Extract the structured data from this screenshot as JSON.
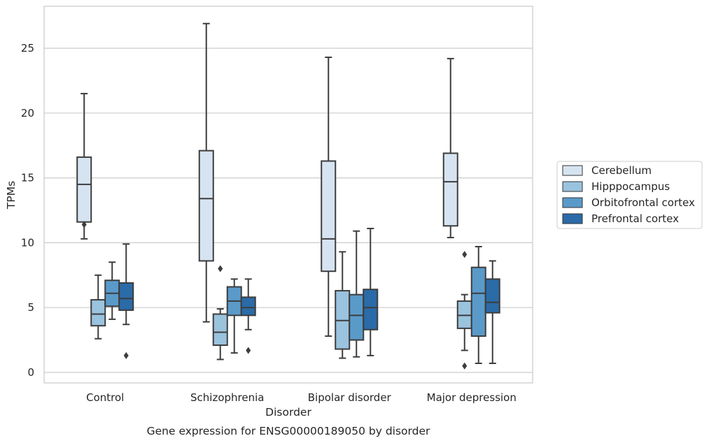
{
  "chart_data": {
    "type": "box",
    "title": "Gene expression for ENSG00000189050 by disorder",
    "xlabel": "Disorder",
    "ylabel": "TPMs",
    "ylim": [
      -0.8,
      28
    ],
    "yticks": [
      0,
      5,
      10,
      15,
      20,
      25
    ],
    "grid": "horizontal",
    "legend_position": "right",
    "categories": [
      "Control",
      "Schizophrenia",
      "Bipolar disorder",
      "Major depression"
    ],
    "series": [
      {
        "name": "Cerebellum",
        "color": "#d6e4f2",
        "boxes": [
          {
            "whisker_low": 10.3,
            "q1": 11.6,
            "median": 14.5,
            "q3": 16.6,
            "whisker_high": 21.5,
            "outliers": [
              11.4
            ]
          },
          {
            "whisker_low": 3.9,
            "q1": 8.6,
            "median": 13.4,
            "q3": 17.1,
            "whisker_high": 26.9,
            "outliers": []
          },
          {
            "whisker_low": 2.8,
            "q1": 7.8,
            "median": 10.3,
            "q3": 16.3,
            "whisker_high": 24.3,
            "outliers": []
          },
          {
            "whisker_low": 10.4,
            "q1": 11.3,
            "median": 14.7,
            "q3": 16.9,
            "whisker_high": 24.2,
            "outliers": []
          }
        ]
      },
      {
        "name": "Hipppocampus",
        "color": "#9ac3de",
        "boxes": [
          {
            "whisker_low": 2.6,
            "q1": 3.6,
            "median": 4.5,
            "q3": 5.6,
            "whisker_high": 7.5,
            "outliers": []
          },
          {
            "whisker_low": 1.0,
            "q1": 2.1,
            "median": 3.1,
            "q3": 4.5,
            "whisker_high": 4.9,
            "outliers": [
              8.0
            ]
          },
          {
            "whisker_low": 1.1,
            "q1": 1.8,
            "median": 4.0,
            "q3": 6.3,
            "whisker_high": 9.3,
            "outliers": []
          },
          {
            "whisker_low": 1.7,
            "q1": 3.4,
            "median": 4.4,
            "q3": 5.5,
            "whisker_high": 6.0,
            "outliers": [
              0.5,
              9.1
            ]
          }
        ]
      },
      {
        "name": "Orbitofrontal cortex",
        "color": "#5a9ac9",
        "boxes": [
          {
            "whisker_low": 4.1,
            "q1": 5.1,
            "median": 6.1,
            "q3": 7.1,
            "whisker_high": 8.5,
            "outliers": []
          },
          {
            "whisker_low": 1.5,
            "q1": 4.4,
            "median": 5.5,
            "q3": 6.6,
            "whisker_high": 7.2,
            "outliers": []
          },
          {
            "whisker_low": 1.2,
            "q1": 2.5,
            "median": 4.4,
            "q3": 6.0,
            "whisker_high": 10.9,
            "outliers": []
          },
          {
            "whisker_low": 0.7,
            "q1": 2.8,
            "median": 6.1,
            "q3": 8.1,
            "whisker_high": 9.7,
            "outliers": []
          }
        ]
      },
      {
        "name": "Prefrontal cortex",
        "color": "#2a6ba8",
        "boxes": [
          {
            "whisker_low": 3.7,
            "q1": 4.8,
            "median": 5.7,
            "q3": 6.9,
            "whisker_high": 9.9,
            "outliers": [
              1.3
            ]
          },
          {
            "whisker_low": 3.3,
            "q1": 4.4,
            "median": 5.0,
            "q3": 5.8,
            "whisker_high": 7.2,
            "outliers": [
              1.7
            ]
          },
          {
            "whisker_low": 1.3,
            "q1": 3.3,
            "median": 5.0,
            "q3": 6.4,
            "whisker_high": 11.1,
            "outliers": []
          },
          {
            "whisker_low": 0.7,
            "q1": 4.6,
            "median": 5.4,
            "q3": 7.2,
            "whisker_high": 8.6,
            "outliers": []
          }
        ]
      }
    ]
  }
}
